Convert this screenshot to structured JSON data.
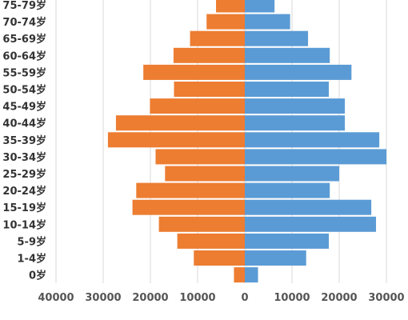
{
  "chart_data": {
    "type": "bar",
    "orientation": "horizontal",
    "layout": "population-pyramid",
    "categories": [
      "0岁",
      "1-4岁",
      "5-9岁",
      "10-14岁",
      "15-19岁",
      "20-24岁",
      "25-29岁",
      "30-34岁",
      "35-39岁",
      "40-44岁",
      "45-49岁",
      "50-54岁",
      "55-59岁",
      "60-64岁",
      "65-69岁",
      "70-74岁",
      "75-79岁"
    ],
    "series": [
      {
        "side": "left",
        "color": "#ED7D31",
        "values": [
          2300,
          10800,
          14300,
          18200,
          23800,
          23000,
          16900,
          18900,
          29000,
          27300,
          20100,
          15000,
          21500,
          15100,
          11600,
          8100,
          6100
        ]
      },
      {
        "side": "right",
        "color": "#5B9BD5",
        "values": [
          2800,
          13000,
          17800,
          27800,
          26800,
          18000,
          20000,
          30000,
          28500,
          21200,
          21200,
          17800,
          22600,
          18000,
          13400,
          9600,
          6300
        ]
      }
    ],
    "x_ticks": [
      {
        "label": "40000",
        "value": -40000
      },
      {
        "label": "30000",
        "value": -30000
      },
      {
        "label": "20000",
        "value": -20000
      },
      {
        "label": "10000",
        "value": -10000
      },
      {
        "label": "0",
        "value": 0
      },
      {
        "label": "10000",
        "value": 10000
      },
      {
        "label": "20000",
        "value": 20000
      },
      {
        "label": "30000",
        "value": 30000
      }
    ],
    "xlim": [
      -40000,
      30000
    ],
    "grid": true,
    "legend": "none"
  }
}
